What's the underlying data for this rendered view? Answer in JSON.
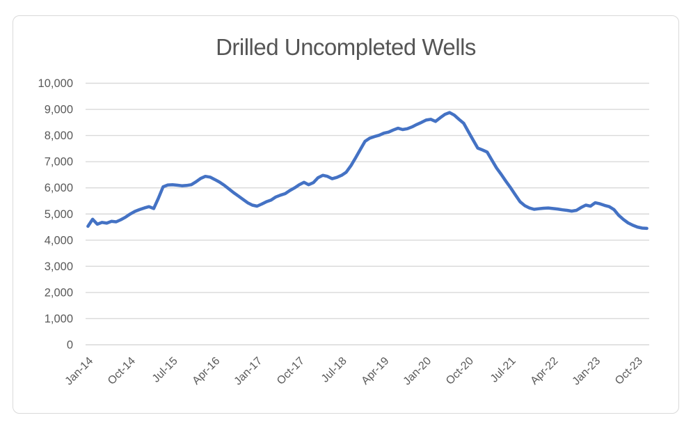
{
  "chart_data": {
    "type": "line",
    "title": "Drilled Uncompleted Wells",
    "xlabel": "",
    "ylabel": "",
    "series_start": "Jan-14",
    "frequency": "monthly",
    "series": [
      {
        "name": "Drilled Uncompleted Wells",
        "values": [
          4530,
          4800,
          4610,
          4680,
          4650,
          4720,
          4700,
          4780,
          4880,
          5000,
          5100,
          5170,
          5230,
          5280,
          5210,
          5600,
          6040,
          6110,
          6120,
          6100,
          6080,
          6090,
          6120,
          6230,
          6360,
          6440,
          6410,
          6320,
          6220,
          6100,
          5960,
          5820,
          5690,
          5560,
          5430,
          5340,
          5300,
          5380,
          5470,
          5530,
          5650,
          5720,
          5780,
          5900,
          6000,
          6120,
          6210,
          6120,
          6200,
          6390,
          6480,
          6440,
          6350,
          6400,
          6480,
          6600,
          6850,
          7150,
          7470,
          7780,
          7900,
          7960,
          8010,
          8090,
          8130,
          8210,
          8280,
          8230,
          8260,
          8330,
          8420,
          8500,
          8590,
          8620,
          8540,
          8680,
          8810,
          8880,
          8780,
          8620,
          8470,
          8150,
          7830,
          7520,
          7450,
          7370,
          7060,
          6760,
          6510,
          6250,
          6000,
          5730,
          5470,
          5320,
          5230,
          5180,
          5200,
          5220,
          5230,
          5210,
          5190,
          5160,
          5140,
          5110,
          5140,
          5250,
          5340,
          5300,
          5430,
          5390,
          5330,
          5280,
          5170,
          4950,
          4790,
          4660,
          4570,
          4500,
          4460,
          4450
        ]
      }
    ],
    "x_tick_labels": [
      "Jan-14",
      "Oct-14",
      "Jul-15",
      "Apr-16",
      "Jan-17",
      "Oct-17",
      "Jul-18",
      "Apr-19",
      "Jan-20",
      "Oct-20",
      "Jul-21",
      "Apr-22",
      "Jan-23",
      "Oct-23"
    ],
    "x_tick_every_n_points": 9,
    "x_tick_rotation_deg": -45,
    "y_tick_labels": [
      "0",
      "1,000",
      "2,000",
      "3,000",
      "4,000",
      "5,000",
      "6,000",
      "7,000",
      "8,000",
      "9,000",
      "10,000"
    ],
    "ylim": [
      0,
      10000
    ],
    "y_step": 1000,
    "grid": "horizontal",
    "legend": "none",
    "colors": {
      "line": "#4472C4",
      "text": "#595959",
      "gridline": "#D9D9D9",
      "frame_border": "#D9D9D9",
      "background": "#FFFFFF"
    }
  }
}
